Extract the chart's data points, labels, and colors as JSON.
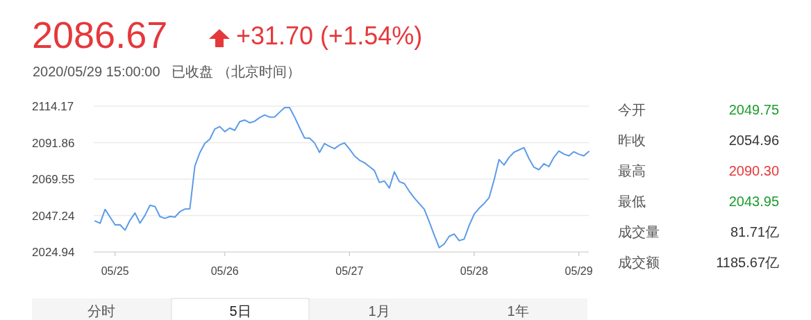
{
  "chart_data": {
    "type": "line",
    "title": "2086.67",
    "subtitle": "2020/05/29 15:00:00   已收盘 （北京时间）",
    "annotations": [
      "+31.70 (+1.54%)",
      "今开",
      "2049.75",
      "昨收",
      "2054.96",
      "最高",
      "2090.30",
      "最低",
      "2043.95",
      "成交量",
      "81.71亿",
      "成交额",
      "1185.67亿",
      "分时",
      "5日",
      "1月",
      "1年"
    ],
    "categories": [
      null,
      null,
      null,
      null,
      "05/25",
      null,
      null,
      null,
      null,
      null,
      null,
      null,
      null,
      null,
      null,
      null,
      null,
      null,
      null,
      null,
      null,
      null,
      null,
      null,
      null,
      null,
      "05/26",
      null,
      null,
      null,
      null,
      null,
      null,
      null,
      null,
      null,
      null,
      null,
      null,
      null,
      null,
      null,
      null,
      null,
      null,
      null,
      null,
      null,
      null,
      null,
      null,
      "05/27",
      null,
      null,
      null,
      null,
      null,
      null,
      null,
      null,
      null,
      null,
      null,
      null,
      null,
      null,
      null,
      null,
      null,
      null,
      null,
      null,
      null,
      null,
      null,
      null,
      "05/28",
      null,
      null,
      null,
      null,
      null,
      null,
      null,
      null,
      null,
      null,
      null,
      null,
      null,
      null,
      null,
      null,
      null,
      null,
      null,
      null,
      "05/29",
      null,
      null
    ],
    "values": [
      2043.9,
      2042.5,
      2051.0,
      2046.3,
      2041.5,
      2041.6,
      2038.3,
      2044.4,
      2048.8,
      2042.6,
      2047.4,
      2053.5,
      2052.8,
      2046.6,
      2045.5,
      2046.7,
      2046.3,
      2049.6,
      2051.2,
      2051.4,
      2077.6,
      2085.7,
      2091.4,
      2094.0,
      2100.2,
      2101.7,
      2098.6,
      2100.8,
      2099.4,
      2104.7,
      2105.7,
      2104.0,
      2105.0,
      2107.2,
      2108.8,
      2107.5,
      2107.6,
      2110.5,
      2113.3,
      2113.3,
      2107.5,
      2101.0,
      2094.7,
      2094.6,
      2091.7,
      2085.9,
      2091.3,
      2089.6,
      2088.2,
      2090.4,
      2091.7,
      2088.0,
      2083.8,
      2081.1,
      2079.6,
      2077.2,
      2074.8,
      2067.5,
      2068.4,
      2064.1,
      2074.0,
      2068.0,
      2066.8,
      2062.1,
      2058.0,
      2054.5,
      2051.1,
      2043.5,
      2035.3,
      2027.6,
      2029.8,
      2034.5,
      2035.9,
      2031.9,
      2032.8,
      2041.1,
      2048.0,
      2051.7,
      2054.6,
      2058.1,
      2069.0,
      2081.5,
      2078.2,
      2082.8,
      2086.0,
      2087.4,
      2088.8,
      2082.1,
      2076.8,
      2075.3,
      2079.0,
      2077.2,
      2082.9,
      2086.7,
      2084.9,
      2083.8,
      2086.3,
      2084.8,
      2083.8,
      2086.4
    ],
    "color": "#5b9be8",
    "ylim": [
      2024.94,
      2114.17
    ],
    "yticks": [
      2024.94,
      2047.24,
      2069.55,
      2091.86,
      2114.17
    ],
    "grid": "y",
    "marker": "none",
    "line_style": "solid"
  }
}
